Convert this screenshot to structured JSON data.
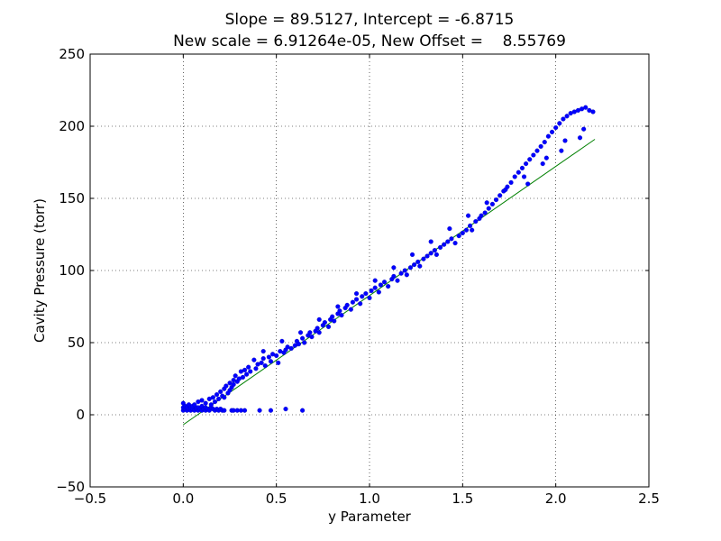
{
  "chart_data": {
    "type": "scatter",
    "title_lines": [
      "Slope = 89.5127, Intercept = -6.8715",
      "New scale = 6.91264e-05, New Offset =    8.55769"
    ],
    "xlabel": "y Parameter",
    "ylabel": "Cavity Pressure (torr)",
    "xlim": [
      -0.5,
      2.5
    ],
    "ylim": [
      -50,
      250
    ],
    "x_ticks": [
      -0.5,
      0.0,
      0.5,
      1.0,
      1.5,
      2.0,
      2.5
    ],
    "x_tick_labels": [
      "−0.5",
      "0.0",
      "0.5",
      "1.0",
      "1.5",
      "2.0",
      "2.5"
    ],
    "y_ticks": [
      -50,
      0,
      50,
      100,
      150,
      200,
      250
    ],
    "y_tick_labels": [
      "−50",
      "0",
      "50",
      "100",
      "150",
      "200",
      "250"
    ],
    "grid": true,
    "colors": {
      "points": "#0000ff",
      "fit_line": "#008000"
    },
    "fit_line": {
      "slope": 89.5127,
      "intercept": -6.8715,
      "x_range": [
        0.0,
        2.21
      ]
    },
    "series": [
      {
        "marker": "dot",
        "points": [
          [
            0.0,
            3
          ],
          [
            0.0,
            5
          ],
          [
            0.0,
            8
          ],
          [
            0.01,
            4
          ],
          [
            0.01,
            6
          ],
          [
            0.02,
            3
          ],
          [
            0.02,
            5
          ],
          [
            0.03,
            4
          ],
          [
            0.03,
            7
          ],
          [
            0.04,
            3
          ],
          [
            0.04,
            5
          ],
          [
            0.05,
            4
          ],
          [
            0.05,
            6
          ],
          [
            0.06,
            3
          ],
          [
            0.07,
            4
          ],
          [
            0.07,
            5
          ],
          [
            0.08,
            3
          ],
          [
            0.08,
            5
          ],
          [
            0.09,
            4
          ],
          [
            0.1,
            3
          ],
          [
            0.1,
            6
          ],
          [
            0.11,
            4
          ],
          [
            0.12,
            3
          ],
          [
            0.12,
            5
          ],
          [
            0.13,
            4
          ],
          [
            0.14,
            3
          ],
          [
            0.15,
            5
          ],
          [
            0.16,
            4
          ],
          [
            0.17,
            3
          ],
          [
            0.18,
            4
          ],
          [
            0.19,
            3
          ],
          [
            0.2,
            4
          ],
          [
            0.21,
            3
          ],
          [
            0.22,
            3
          ],
          [
            0.26,
            3
          ],
          [
            0.27,
            3
          ],
          [
            0.29,
            3
          ],
          [
            0.31,
            3
          ],
          [
            0.33,
            3
          ],
          [
            0.41,
            3
          ],
          [
            0.47,
            3
          ],
          [
            0.55,
            4
          ],
          [
            0.64,
            3
          ],
          [
            0.06,
            7
          ],
          [
            0.08,
            9
          ],
          [
            0.1,
            10
          ],
          [
            0.12,
            8
          ],
          [
            0.14,
            11
          ],
          [
            0.15,
            7
          ],
          [
            0.16,
            12
          ],
          [
            0.17,
            9
          ],
          [
            0.18,
            14
          ],
          [
            0.19,
            11
          ],
          [
            0.2,
            16
          ],
          [
            0.21,
            13
          ],
          [
            0.22,
            18
          ],
          [
            0.22,
            12
          ],
          [
            0.23,
            20
          ],
          [
            0.24,
            15
          ],
          [
            0.25,
            22
          ],
          [
            0.25,
            17
          ],
          [
            0.26,
            19
          ],
          [
            0.27,
            24
          ],
          [
            0.27,
            21
          ],
          [
            0.28,
            27
          ],
          [
            0.29,
            23
          ],
          [
            0.3,
            25
          ],
          [
            0.31,
            30
          ],
          [
            0.32,
            26
          ],
          [
            0.34,
            28
          ],
          [
            0.35,
            33
          ],
          [
            0.36,
            30
          ],
          [
            0.38,
            38
          ],
          [
            0.39,
            32
          ],
          [
            0.4,
            35
          ],
          [
            0.42,
            36
          ],
          [
            0.43,
            39
          ],
          [
            0.44,
            34
          ],
          [
            0.46,
            40
          ],
          [
            0.47,
            37
          ],
          [
            0.48,
            42
          ],
          [
            0.5,
            41
          ],
          [
            0.51,
            36
          ],
          [
            0.52,
            44
          ],
          [
            0.54,
            43
          ],
          [
            0.55,
            45
          ],
          [
            0.56,
            47
          ],
          [
            0.58,
            46
          ],
          [
            0.6,
            48
          ],
          [
            0.61,
            51
          ],
          [
            0.62,
            49
          ],
          [
            0.64,
            53
          ],
          [
            0.65,
            50
          ],
          [
            0.67,
            55
          ],
          [
            0.68,
            57
          ],
          [
            0.69,
            54
          ],
          [
            0.71,
            58
          ],
          [
            0.72,
            60
          ],
          [
            0.73,
            57
          ],
          [
            0.75,
            62
          ],
          [
            0.76,
            64
          ],
          [
            0.78,
            61
          ],
          [
            0.79,
            66
          ],
          [
            0.8,
            68
          ],
          [
            0.81,
            65
          ],
          [
            0.83,
            70
          ],
          [
            0.84,
            72
          ],
          [
            0.85,
            69
          ],
          [
            0.87,
            74
          ],
          [
            0.88,
            76
          ],
          [
            0.9,
            73
          ],
          [
            0.91,
            78
          ],
          [
            0.93,
            80
          ],
          [
            0.95,
            77
          ],
          [
            0.96,
            82
          ],
          [
            0.98,
            84
          ],
          [
            1.0,
            81
          ],
          [
            1.01,
            86
          ],
          [
            1.03,
            88
          ],
          [
            1.05,
            85
          ],
          [
            1.06,
            90
          ],
          [
            1.08,
            92
          ],
          [
            1.1,
            89
          ],
          [
            1.12,
            94
          ],
          [
            1.13,
            96
          ],
          [
            1.15,
            93
          ],
          [
            1.17,
            98
          ],
          [
            1.19,
            100
          ],
          [
            1.2,
            97
          ],
          [
            1.22,
            102
          ],
          [
            1.24,
            104
          ],
          [
            1.26,
            106
          ],
          [
            1.27,
            103
          ],
          [
            1.29,
            108
          ],
          [
            1.31,
            110
          ],
          [
            1.33,
            112
          ],
          [
            1.35,
            114
          ],
          [
            1.36,
            111
          ],
          [
            1.38,
            116
          ],
          [
            1.4,
            118
          ],
          [
            1.42,
            120
          ],
          [
            1.44,
            122
          ],
          [
            1.46,
            119
          ],
          [
            1.48,
            124
          ],
          [
            1.5,
            126
          ],
          [
            1.52,
            128
          ],
          [
            1.54,
            131
          ],
          [
            1.55,
            128
          ],
          [
            1.57,
            134
          ],
          [
            1.59,
            136
          ],
          [
            1.6,
            138
          ],
          [
            1.62,
            140
          ],
          [
            1.64,
            143
          ],
          [
            1.66,
            146
          ],
          [
            1.68,
            149
          ],
          [
            1.7,
            152
          ],
          [
            1.72,
            155
          ],
          [
            1.74,
            158
          ],
          [
            1.76,
            161
          ],
          [
            1.78,
            165
          ],
          [
            1.8,
            168
          ],
          [
            1.82,
            171
          ],
          [
            1.84,
            174
          ],
          [
            1.86,
            177
          ],
          [
            1.88,
            180
          ],
          [
            1.9,
            183
          ],
          [
            1.92,
            186
          ],
          [
            1.94,
            189
          ],
          [
            1.96,
            193
          ],
          [
            1.98,
            196
          ],
          [
            2.0,
            199
          ],
          [
            2.02,
            202
          ],
          [
            2.04,
            205
          ],
          [
            2.06,
            207
          ],
          [
            2.08,
            209
          ],
          [
            2.1,
            210
          ],
          [
            2.12,
            211
          ],
          [
            2.14,
            212
          ],
          [
            2.16,
            213
          ],
          [
            2.18,
            211
          ],
          [
            2.2,
            210
          ],
          [
            0.33,
            31
          ],
          [
            0.43,
            44
          ],
          [
            0.53,
            51
          ],
          [
            0.63,
            57
          ],
          [
            0.73,
            66
          ],
          [
            0.83,
            75
          ],
          [
            0.93,
            84
          ],
          [
            1.03,
            93
          ],
          [
            1.13,
            102
          ],
          [
            1.23,
            111
          ],
          [
            1.33,
            120
          ],
          [
            1.43,
            129
          ],
          [
            1.53,
            138
          ],
          [
            1.63,
            147
          ],
          [
            1.73,
            156
          ],
          [
            1.83,
            165
          ],
          [
            1.93,
            174
          ],
          [
            2.03,
            183
          ],
          [
            2.13,
            192
          ],
          [
            1.85,
            160
          ],
          [
            1.95,
            178
          ],
          [
            2.05,
            190
          ],
          [
            2.15,
            198
          ]
        ]
      }
    ]
  }
}
